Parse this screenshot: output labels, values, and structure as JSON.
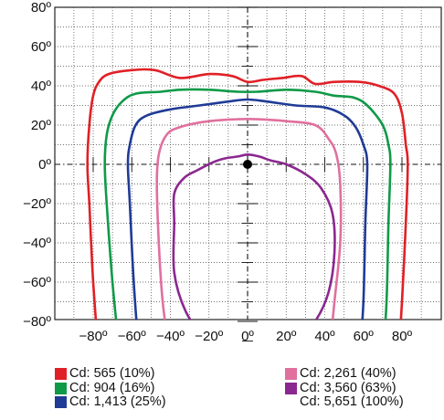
{
  "chart_data": {
    "type": "polar-isocandela",
    "title": "",
    "xlabel": "",
    "ylabel": "",
    "xlim": [
      -100,
      100
    ],
    "ylim": [
      -100,
      100
    ],
    "x_ticks": [
      "−80º",
      "−60º",
      "−40º",
      "−20º",
      "0º",
      "20º",
      "40º",
      "60º",
      "80º"
    ],
    "x_tick_values": [
      -80,
      -60,
      -40,
      -20,
      0,
      20,
      40,
      60,
      80
    ],
    "y_ticks": [
      "80º",
      "60º",
      "40º",
      "20º",
      "0º",
      "−20º",
      "−40º",
      "−60º",
      "−80º"
    ],
    "y_tick_values": [
      80,
      60,
      40,
      20,
      0,
      -20,
      -40,
      -60,
      -80
    ],
    "grid": true,
    "center_point": [
      0,
      0
    ],
    "series": [
      {
        "name": "Cd: 565 (10%)",
        "color": "#e02026",
        "points": [
          [
            -77,
            -100
          ],
          [
            -80,
            -60
          ],
          [
            -82,
            -20
          ],
          [
            -83,
            0
          ],
          [
            -82,
            20
          ],
          [
            -80,
            35
          ],
          [
            -77,
            42
          ],
          [
            -72,
            46
          ],
          [
            -60,
            48
          ],
          [
            -48,
            48
          ],
          [
            -35,
            44
          ],
          [
            -20,
            46
          ],
          [
            -8,
            45
          ],
          [
            0,
            42
          ],
          [
            8,
            43
          ],
          [
            18,
            44
          ],
          [
            28,
            45
          ],
          [
            35,
            41
          ],
          [
            45,
            42
          ],
          [
            58,
            42
          ],
          [
            68,
            40
          ],
          [
            76,
            36
          ],
          [
            80,
            26
          ],
          [
            82,
            10
          ],
          [
            83,
            0
          ],
          [
            82,
            -30
          ],
          [
            80,
            -70
          ],
          [
            78,
            -100
          ]
        ]
      },
      {
        "name": "Cd: 904 (16%)",
        "color": "#0f9a48",
        "points": [
          [
            -66,
            -100
          ],
          [
            -70,
            -60
          ],
          [
            -73,
            -20
          ],
          [
            -74,
            0
          ],
          [
            -73,
            15
          ],
          [
            -70,
            25
          ],
          [
            -65,
            32
          ],
          [
            -58,
            36
          ],
          [
            -45,
            37
          ],
          [
            -35,
            38
          ],
          [
            -20,
            38
          ],
          [
            -5,
            37
          ],
          [
            5,
            37
          ],
          [
            20,
            38
          ],
          [
            35,
            37
          ],
          [
            45,
            35
          ],
          [
            55,
            34
          ],
          [
            62,
            30
          ],
          [
            70,
            20
          ],
          [
            73,
            10
          ],
          [
            74,
            0
          ],
          [
            73,
            -30
          ],
          [
            72,
            -70
          ],
          [
            70,
            -100
          ]
        ]
      },
      {
        "name": "Cd: 1,413 (25%)",
        "color": "#1f3b96",
        "points": [
          [
            -56,
            -100
          ],
          [
            -59,
            -60
          ],
          [
            -61,
            -20
          ],
          [
            -62,
            0
          ],
          [
            -61,
            10
          ],
          [
            -58,
            20
          ],
          [
            -52,
            25
          ],
          [
            -40,
            28
          ],
          [
            -25,
            30
          ],
          [
            -10,
            32
          ],
          [
            0,
            33
          ],
          [
            10,
            32
          ],
          [
            25,
            30
          ],
          [
            40,
            29
          ],
          [
            50,
            25
          ],
          [
            56,
            19
          ],
          [
            60,
            10
          ],
          [
            62,
            0
          ],
          [
            61,
            -30
          ],
          [
            60,
            -70
          ],
          [
            58,
            -100
          ]
        ]
      },
      {
        "name": "Cd: 2,261 (40%)",
        "color": "#e0709e",
        "points": [
          [
            -40,
            -100
          ],
          [
            -44,
            -70
          ],
          [
            -46,
            -40
          ],
          [
            -47,
            -10
          ],
          [
            -46,
            5
          ],
          [
            -42,
            15
          ],
          [
            -35,
            19
          ],
          [
            -20,
            22
          ],
          [
            -5,
            23
          ],
          [
            5,
            23
          ],
          [
            20,
            22
          ],
          [
            35,
            20
          ],
          [
            42,
            13
          ],
          [
            46,
            5
          ],
          [
            48,
            -10
          ],
          [
            48,
            -40
          ],
          [
            45,
            -70
          ],
          [
            42,
            -100
          ]
        ]
      },
      {
        "name": "Cd: 3,560 (63%)",
        "color": "#8b2790",
        "points": [
          [
            -2,
            -98
          ],
          [
            -10,
            -95
          ],
          [
            -22,
            -88
          ],
          [
            -32,
            -75
          ],
          [
            -38,
            -55
          ],
          [
            -38,
            -30
          ],
          [
            -38,
            -15
          ],
          [
            -33,
            -7
          ],
          [
            -26,
            -3
          ],
          [
            -18,
            1
          ],
          [
            -12,
            3
          ],
          [
            -5,
            4
          ],
          [
            0,
            5
          ],
          [
            6,
            4
          ],
          [
            12,
            2
          ],
          [
            20,
            0
          ],
          [
            30,
            -5
          ],
          [
            38,
            -12
          ],
          [
            44,
            -25
          ],
          [
            45,
            -45
          ],
          [
            42,
            -65
          ],
          [
            35,
            -80
          ],
          [
            25,
            -90
          ],
          [
            12,
            -96
          ],
          [
            -2,
            -98
          ]
        ]
      },
      {
        "name": "Cd: 5,651 (100%)",
        "color": "",
        "points": [
          [
            0,
            0
          ]
        ]
      }
    ],
    "legend_placement": "bottom"
  }
}
